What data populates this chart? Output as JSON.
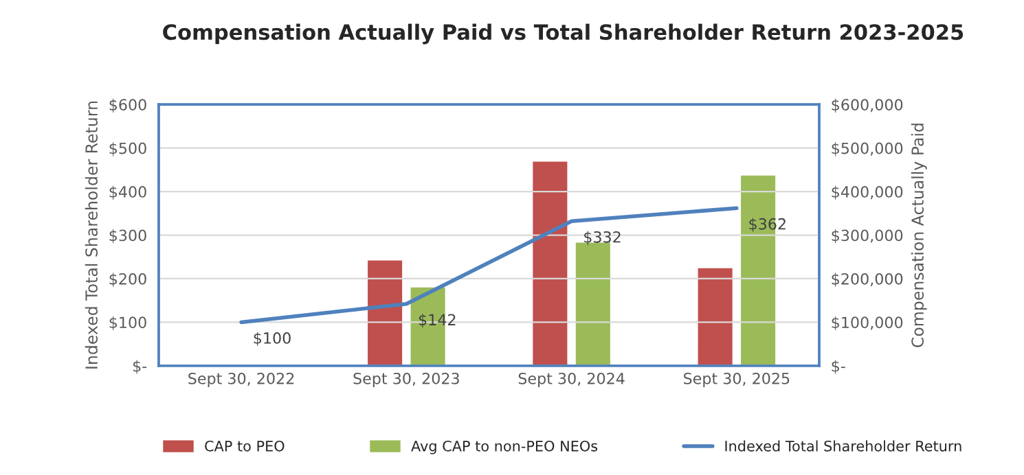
{
  "chart_data": {
    "type": "bar",
    "title": "Compensation Actually Paid vs Total Shareholder Return 2023-2025",
    "ylabel": "Indexed Total Shareholder Return",
    "y2label": "Compensation Actually Paid",
    "categories": [
      "Sept 30, 2022",
      "Sept 30, 2023",
      "Sept 30, 2024",
      "Sept 30, 2025"
    ],
    "series": [
      {
        "name": "CAP to PEO",
        "axis": "y2",
        "color": "#c0504d",
        "values": [
          null,
          244000,
          471000,
          226000
        ]
      },
      {
        "name": "Avg CAP to non-PEO NEOs",
        "axis": "y2",
        "color": "#9bbb59",
        "values": [
          null,
          182000,
          285000,
          439000
        ]
      },
      {
        "name": "Indexed Total Shareholder Return",
        "type": "line",
        "axis": "y",
        "color": "#4f81bd",
        "values": [
          100,
          142,
          332,
          362
        ],
        "value_labels": [
          "$100",
          "$142",
          "$332",
          "$362"
        ]
      }
    ],
    "ylim": [
      0,
      600
    ],
    "yticks": [
      {
        "value": 0,
        "label": "$-"
      },
      {
        "value": 100,
        "label": "$100"
      },
      {
        "value": 200,
        "label": "$200"
      },
      {
        "value": 300,
        "label": "$300"
      },
      {
        "value": 400,
        "label": "$400"
      },
      {
        "value": 500,
        "label": "$500"
      },
      {
        "value": 600,
        "label": "$600"
      }
    ],
    "y2lim": [
      0,
      600000
    ],
    "y2ticks": [
      {
        "value": 0,
        "label": "$-"
      },
      {
        "value": 100000,
        "label": "$100,000"
      },
      {
        "value": 200000,
        "label": "$200,000"
      },
      {
        "value": 300000,
        "label": "$300,000"
      },
      {
        "value": 400000,
        "label": "$400,000"
      },
      {
        "value": 500000,
        "label": "$500,000"
      },
      {
        "value": 600000,
        "label": "$600,000"
      }
    ],
    "grid": "y",
    "legend": "bottom",
    "marker": "none",
    "line_style": "solid"
  }
}
